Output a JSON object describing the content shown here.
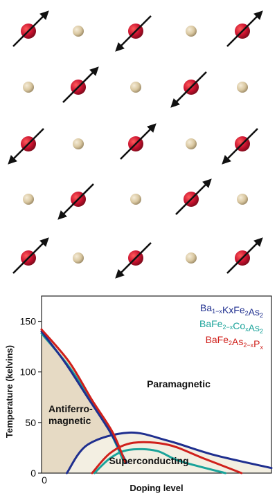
{
  "lattice": {
    "rows": [
      [
        "up",
        "site",
        "down",
        "site",
        "up"
      ],
      [
        "site",
        "up",
        "site",
        "down",
        "site"
      ],
      [
        "down",
        "site",
        "up",
        "site",
        "down"
      ],
      [
        "site",
        "down",
        "site",
        "up",
        "site"
      ],
      [
        "up",
        "site",
        "down",
        "site",
        "up"
      ]
    ],
    "colors": {
      "magnetic_atom": "#c8102e",
      "site_atom": "#d9c7a0",
      "arrow": "#111111"
    }
  },
  "chart_data": {
    "type": "line",
    "xlabel": "Doping level",
    "ylabel": "Temperature (kelvins)",
    "x_tick_labels": [
      "0"
    ],
    "yticks": [
      0,
      50,
      100,
      150
    ],
    "ylim": [
      0,
      175
    ],
    "xlim": [
      0,
      1
    ],
    "regions": {
      "antiferro": "Antiferro-\nmagnetic",
      "paramagnetic": "Paramagnetic",
      "superconducting": "Superconducting"
    },
    "legend": [
      {
        "key": "ba",
        "color": "#1f2f8f",
        "parts": [
          [
            "Ba",
            ""
          ],
          [
            "1−x",
            "sub"
          ],
          [
            "KxFe",
            ""
          ],
          [
            "2",
            "sub"
          ],
          [
            "As",
            ""
          ],
          [
            "2",
            "sub"
          ]
        ]
      },
      {
        "key": "co",
        "color": "#1aa39a",
        "parts": [
          [
            "BaFe",
            ""
          ],
          [
            "2−x",
            "sub"
          ],
          [
            "Co",
            ""
          ],
          [
            "x",
            "sub"
          ],
          [
            "As",
            ""
          ],
          [
            "2",
            "sub"
          ]
        ]
      },
      {
        "key": "p",
        "color": "#d0201b",
        "parts": [
          [
            "BaFe",
            ""
          ],
          [
            "2",
            "sub"
          ],
          [
            "As",
            ""
          ],
          [
            "2−x",
            "sub"
          ],
          [
            "P",
            ""
          ],
          [
            "x",
            "sub"
          ]
        ]
      }
    ],
    "series": [
      {
        "key": "ba",
        "name": "Ba1−xKxFe2As2",
        "color": "#1f2f8f",
        "afm": [
          [
            0,
            140
          ],
          [
            0.1,
            110
          ],
          [
            0.2,
            75
          ],
          [
            0.3,
            40
          ],
          [
            0.37,
            10
          ]
        ],
        "sc": [
          [
            0.11,
            0
          ],
          [
            0.2,
            28
          ],
          [
            0.38,
            40
          ],
          [
            0.55,
            32
          ],
          [
            0.75,
            18
          ],
          [
            1.0,
            5
          ]
        ]
      },
      {
        "key": "co",
        "name": "BaFe2−xCoxAs2",
        "color": "#1aa39a",
        "afm": [
          [
            0,
            138
          ],
          [
            0.12,
            105
          ],
          [
            0.22,
            70
          ],
          [
            0.3,
            40
          ],
          [
            0.36,
            10
          ]
        ],
        "sc": [
          [
            0.23,
            0
          ],
          [
            0.3,
            15
          ],
          [
            0.38,
            23
          ],
          [
            0.5,
            22
          ],
          [
            0.6,
            12
          ],
          [
            0.8,
            0
          ]
        ]
      },
      {
        "key": "p",
        "name": "BaFe2As2−xPx",
        "color": "#d0201b",
        "afm": [
          [
            0,
            142
          ],
          [
            0.12,
            110
          ],
          [
            0.22,
            72
          ],
          [
            0.31,
            40
          ],
          [
            0.365,
            10
          ]
        ],
        "sc": [
          [
            0.22,
            0
          ],
          [
            0.3,
            20
          ],
          [
            0.4,
            30
          ],
          [
            0.55,
            28
          ],
          [
            0.7,
            15
          ],
          [
            0.87,
            0
          ]
        ]
      }
    ],
    "shaded_regions": {
      "antiferro_fill": "#e6dac4",
      "superconducting_fill": "#f3efe2"
    }
  }
}
